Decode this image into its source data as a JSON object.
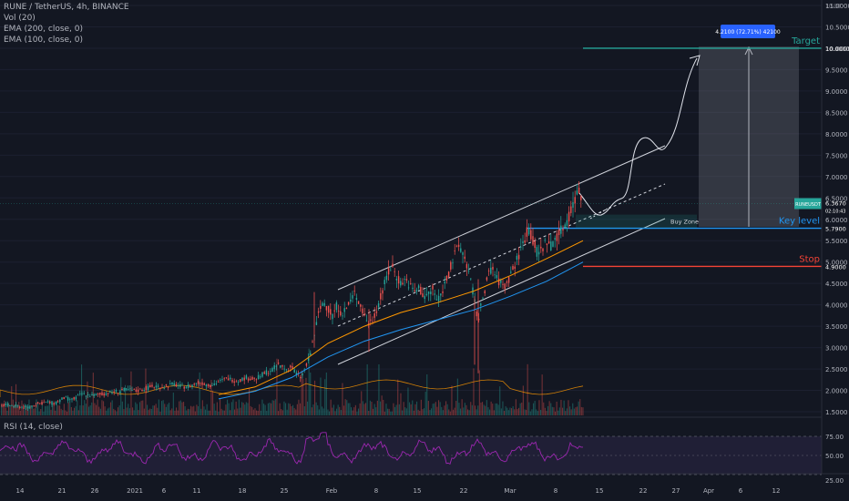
{
  "header": {
    "symbol_line": "RUNE / TetherUS, 4h, BINANCE",
    "indicators": [
      "Vol (20)",
      "EMA (200, close, 0)",
      "EMA (100, close, 0)"
    ],
    "rsi_label": "RSI (14, close)"
  },
  "chart_data": {
    "type": "candlestick",
    "unit": "USDT",
    "price_axis_ticks": [
      "11.0000",
      "10.5000",
      "10.0000",
      "9.5000",
      "9.0000",
      "8.5000",
      "8.0000",
      "7.5000",
      "7.0000",
      "6.5000",
      "6.0000",
      "5.5000",
      "5.0000",
      "4.5000",
      "4.0000",
      "3.5000",
      "3.0000",
      "2.5000",
      "2.0000",
      "1.5000"
    ],
    "time_axis_ticks": [
      "14",
      "21",
      "26",
      "2021",
      "6",
      "11",
      "18",
      "25",
      "Feb",
      "8",
      "15",
      "22",
      "Mar",
      "8",
      "15",
      "22",
      "27",
      "Apr",
      "6",
      "12"
    ],
    "rsi_axis_ticks": [
      "75.00",
      "50.00",
      "25.00"
    ],
    "price_path": [
      [
        0,
        1.65
      ],
      [
        10,
        1.66
      ],
      [
        20,
        1.62
      ],
      [
        30,
        1.6
      ],
      [
        40,
        1.68
      ],
      [
        50,
        1.72
      ],
      [
        60,
        1.7
      ],
      [
        70,
        1.82
      ],
      [
        80,
        1.78
      ],
      [
        90,
        1.92
      ],
      [
        100,
        1.88
      ],
      [
        110,
        1.9
      ],
      [
        120,
        1.95
      ],
      [
        130,
        1.98
      ],
      [
        140,
        2.02
      ],
      [
        150,
        1.98
      ],
      [
        160,
        2.05
      ],
      [
        170,
        2.1
      ],
      [
        180,
        2.08
      ],
      [
        190,
        2.15
      ],
      [
        200,
        2.08
      ],
      [
        210,
        2.12
      ],
      [
        220,
        2.18
      ],
      [
        230,
        2.12
      ],
      [
        240,
        2.2
      ],
      [
        250,
        2.28
      ],
      [
        260,
        2.22
      ],
      [
        270,
        2.3
      ],
      [
        280,
        2.25
      ],
      [
        290,
        2.4
      ],
      [
        300,
        2.5
      ],
      [
        305,
        2.6
      ],
      [
        310,
        2.55
      ],
      [
        315,
        2.48
      ],
      [
        320,
        2.55
      ],
      [
        325,
        2.4
      ],
      [
        330,
        2.3
      ],
      [
        335,
        2.5
      ],
      [
        340,
        2.8
      ],
      [
        345,
        3.3
      ],
      [
        350,
        3.8
      ],
      [
        355,
        4.1
      ],
      [
        360,
        3.9
      ],
      [
        365,
        3.75
      ],
      [
        370,
        4.0
      ],
      [
        375,
        3.8
      ],
      [
        380,
        3.9
      ],
      [
        385,
        4.1
      ],
      [
        390,
        4.3
      ],
      [
        395,
        4.0
      ],
      [
        400,
        3.75
      ],
      [
        405,
        3.55
      ],
      [
        410,
        3.7
      ],
      [
        415,
        4.0
      ],
      [
        420,
        4.3
      ],
      [
        425,
        4.7
      ],
      [
        430,
        4.9
      ],
      [
        435,
        4.7
      ],
      [
        440,
        4.5
      ],
      [
        445,
        4.6
      ],
      [
        450,
        4.45
      ],
      [
        455,
        4.3
      ],
      [
        460,
        4.4
      ],
      [
        465,
        4.2
      ],
      [
        470,
        4.25
      ],
      [
        475,
        4.35
      ],
      [
        480,
        4.1
      ],
      [
        485,
        4.3
      ],
      [
        490,
        4.6
      ],
      [
        495,
        4.9
      ],
      [
        500,
        5.2
      ],
      [
        505,
        5.4
      ],
      [
        510,
        5.1
      ],
      [
        515,
        4.75
      ],
      [
        520,
        4.2
      ],
      [
        525,
        3.6
      ],
      [
        530,
        4.2
      ],
      [
        535,
        4.6
      ],
      [
        540,
        4.9
      ],
      [
        545,
        4.6
      ],
      [
        550,
        4.5
      ],
      [
        555,
        4.4
      ],
      [
        560,
        4.7
      ],
      [
        565,
        4.9
      ],
      [
        570,
        5.2
      ],
      [
        575,
        5.5
      ],
      [
        580,
        5.8
      ],
      [
        585,
        5.5
      ],
      [
        590,
        5.2
      ],
      [
        595,
        5.3
      ],
      [
        600,
        5.5
      ],
      [
        605,
        5.4
      ],
      [
        610,
        5.6
      ],
      [
        615,
        5.7
      ],
      [
        620,
        5.9
      ],
      [
        625,
        6.1
      ],
      [
        630,
        6.4
      ],
      [
        635,
        6.7
      ],
      [
        640,
        6.37
      ]
    ],
    "series": [
      {
        "name": "EMA (200, close, 0)",
        "color": "#2196f3",
        "points": [
          [
            240,
            1.8
          ],
          [
            280,
            1.98
          ],
          [
            320,
            2.3
          ],
          [
            360,
            2.78
          ],
          [
            400,
            3.15
          ],
          [
            440,
            3.42
          ],
          [
            480,
            3.65
          ],
          [
            520,
            3.88
          ],
          [
            560,
            4.2
          ],
          [
            600,
            4.55
          ],
          [
            640,
            5.0
          ]
        ]
      },
      {
        "name": "EMA (100, close, 0)",
        "color": "#ff9800",
        "points": [
          [
            240,
            1.9
          ],
          [
            280,
            2.08
          ],
          [
            320,
            2.48
          ],
          [
            360,
            3.1
          ],
          [
            400,
            3.5
          ],
          [
            440,
            3.82
          ],
          [
            480,
            4.05
          ],
          [
            520,
            4.32
          ],
          [
            560,
            4.68
          ],
          [
            600,
            5.08
          ],
          [
            640,
            5.5
          ]
        ]
      }
    ],
    "volume_color_up": "#26a69a",
    "volume_color_down": "#ef5350",
    "annotations": {
      "target_label": "Target",
      "target_price": "10.0000",
      "target_color": "#26a69a",
      "key_level_label": "Key level",
      "key_level_price": "5.7900",
      "key_level_color": "#2196f3",
      "stop_label": "Stop",
      "stop_price": "4.9000",
      "stop_color": "#f44336",
      "buy_zone_label": "Buy Zone",
      "measure_label": "4.2100 (72.71%) 42100",
      "last_price_ticker": "RUNEUSDT",
      "last_price": "6.3670",
      "last_price_sub": "02:10:43"
    }
  }
}
